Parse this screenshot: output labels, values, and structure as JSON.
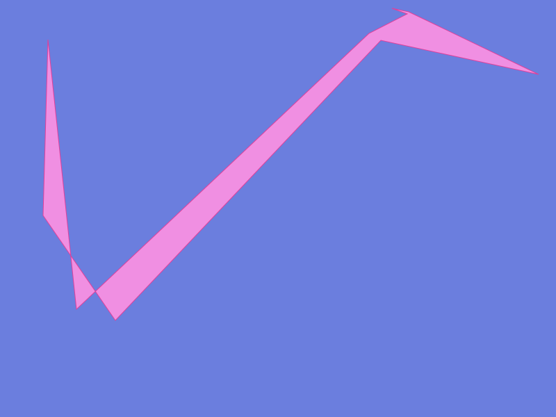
{
  "scene": {
    "background_color": "#6B7EDE",
    "shape_fill": "#F08FE2",
    "shape_stroke": "#E0409A"
  }
}
